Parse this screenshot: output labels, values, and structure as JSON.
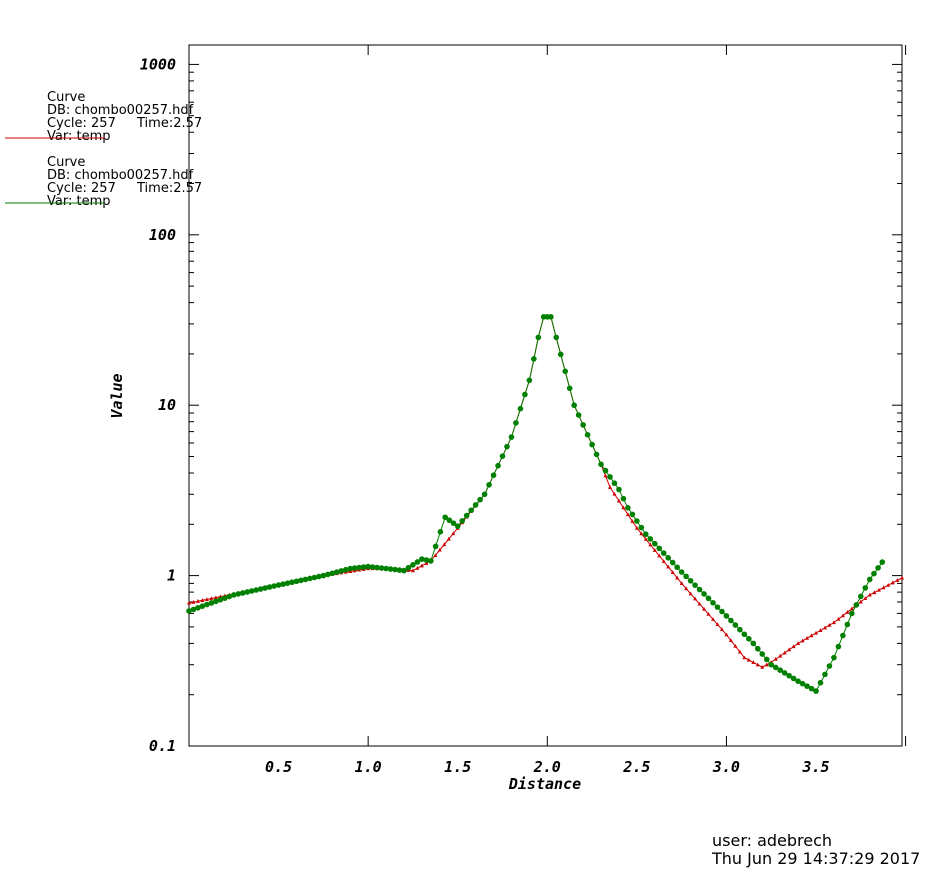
{
  "legend": [
    {
      "title": "Curve",
      "db": "DB: chombo00257.hdf",
      "cycle": "Cycle: 257",
      "time": "Time:2.57",
      "var": "Var: temp",
      "color": "#cc0000"
    },
    {
      "title": "Curve",
      "db": "DB: chombo00257.hdf",
      "cycle": "Cycle: 257",
      "time": "Time:2.57",
      "var": "Var: temp",
      "color": "#008000"
    }
  ],
  "footer": {
    "user": "user: adebrech",
    "date": "Thu Jun 29 14:37:29 2017"
  },
  "chart_data": {
    "type": "line",
    "xlabel": "Distance",
    "ylabel": "Value",
    "xlim": [
      0,
      3.98
    ],
    "ylim": [
      0.1,
      1300
    ],
    "yscale": "log",
    "xticks": [
      {
        "v": 0.5,
        "label": "0.5"
      },
      {
        "v": 1.0,
        "label": "1.0"
      },
      {
        "v": 1.5,
        "label": "1.5"
      },
      {
        "v": 2.0,
        "label": "2.0"
      },
      {
        "v": 2.5,
        "label": "2.5"
      },
      {
        "v": 3.0,
        "label": "3.0"
      },
      {
        "v": 3.5,
        "label": "3.5"
      }
    ],
    "yticks": [
      {
        "v": 0.1,
        "label": "0.1"
      },
      {
        "v": 1,
        "label": "1"
      },
      {
        "v": 10,
        "label": "10"
      },
      {
        "v": 100,
        "label": "100"
      },
      {
        "v": 1000,
        "label": "1000"
      }
    ],
    "grid": false,
    "legend_position": "top-left",
    "series": [
      {
        "color": "#cc0000",
        "marker": "triangle",
        "points": [
          [
            0.0,
            0.69
          ],
          [
            0.25,
            0.78
          ],
          [
            0.5,
            0.88
          ],
          [
            0.75,
            1.0
          ],
          [
            1.0,
            1.1
          ],
          [
            1.1,
            1.1
          ],
          [
            1.25,
            1.07
          ],
          [
            1.35,
            1.22
          ],
          [
            1.5,
            1.9
          ],
          [
            1.65,
            3.0
          ],
          [
            1.8,
            6.5
          ],
          [
            1.9,
            14.0
          ],
          [
            1.95,
            25.0
          ],
          [
            1.98,
            33.0
          ],
          [
            2.02,
            33.0
          ],
          [
            2.05,
            25.0
          ],
          [
            2.15,
            10.0
          ],
          [
            2.3,
            4.5
          ],
          [
            2.35,
            3.3
          ],
          [
            2.5,
            1.9
          ],
          [
            2.75,
            0.9
          ],
          [
            3.0,
            0.45
          ],
          [
            3.1,
            0.33
          ],
          [
            3.2,
            0.29
          ],
          [
            3.25,
            0.31
          ],
          [
            3.4,
            0.4
          ],
          [
            3.6,
            0.53
          ],
          [
            3.8,
            0.77
          ],
          [
            3.98,
            0.97
          ]
        ]
      },
      {
        "color": "#008000",
        "marker": "circle",
        "points": [
          [
            0.0,
            0.62
          ],
          [
            0.25,
            0.77
          ],
          [
            0.5,
            0.88
          ],
          [
            0.75,
            1.0
          ],
          [
            0.9,
            1.1
          ],
          [
            1.0,
            1.13
          ],
          [
            1.1,
            1.1
          ],
          [
            1.2,
            1.07
          ],
          [
            1.3,
            1.25
          ],
          [
            1.35,
            1.22
          ],
          [
            1.43,
            2.2
          ],
          [
            1.5,
            1.95
          ],
          [
            1.65,
            3.0
          ],
          [
            1.8,
            6.5
          ],
          [
            1.9,
            14.0
          ],
          [
            1.95,
            25.0
          ],
          [
            1.98,
            33.0
          ],
          [
            2.02,
            33.0
          ],
          [
            2.05,
            25.0
          ],
          [
            2.15,
            10.0
          ],
          [
            2.3,
            4.5
          ],
          [
            2.4,
            3.2
          ],
          [
            2.45,
            2.5
          ],
          [
            2.55,
            1.75
          ],
          [
            2.75,
            1.05
          ],
          [
            3.0,
            0.58
          ],
          [
            3.15,
            0.4
          ],
          [
            3.25,
            0.3
          ],
          [
            3.4,
            0.24
          ],
          [
            3.5,
            0.21
          ],
          [
            3.6,
            0.33
          ],
          [
            3.7,
            0.6
          ],
          [
            3.8,
            0.95
          ],
          [
            3.87,
            1.2
          ]
        ]
      }
    ]
  }
}
